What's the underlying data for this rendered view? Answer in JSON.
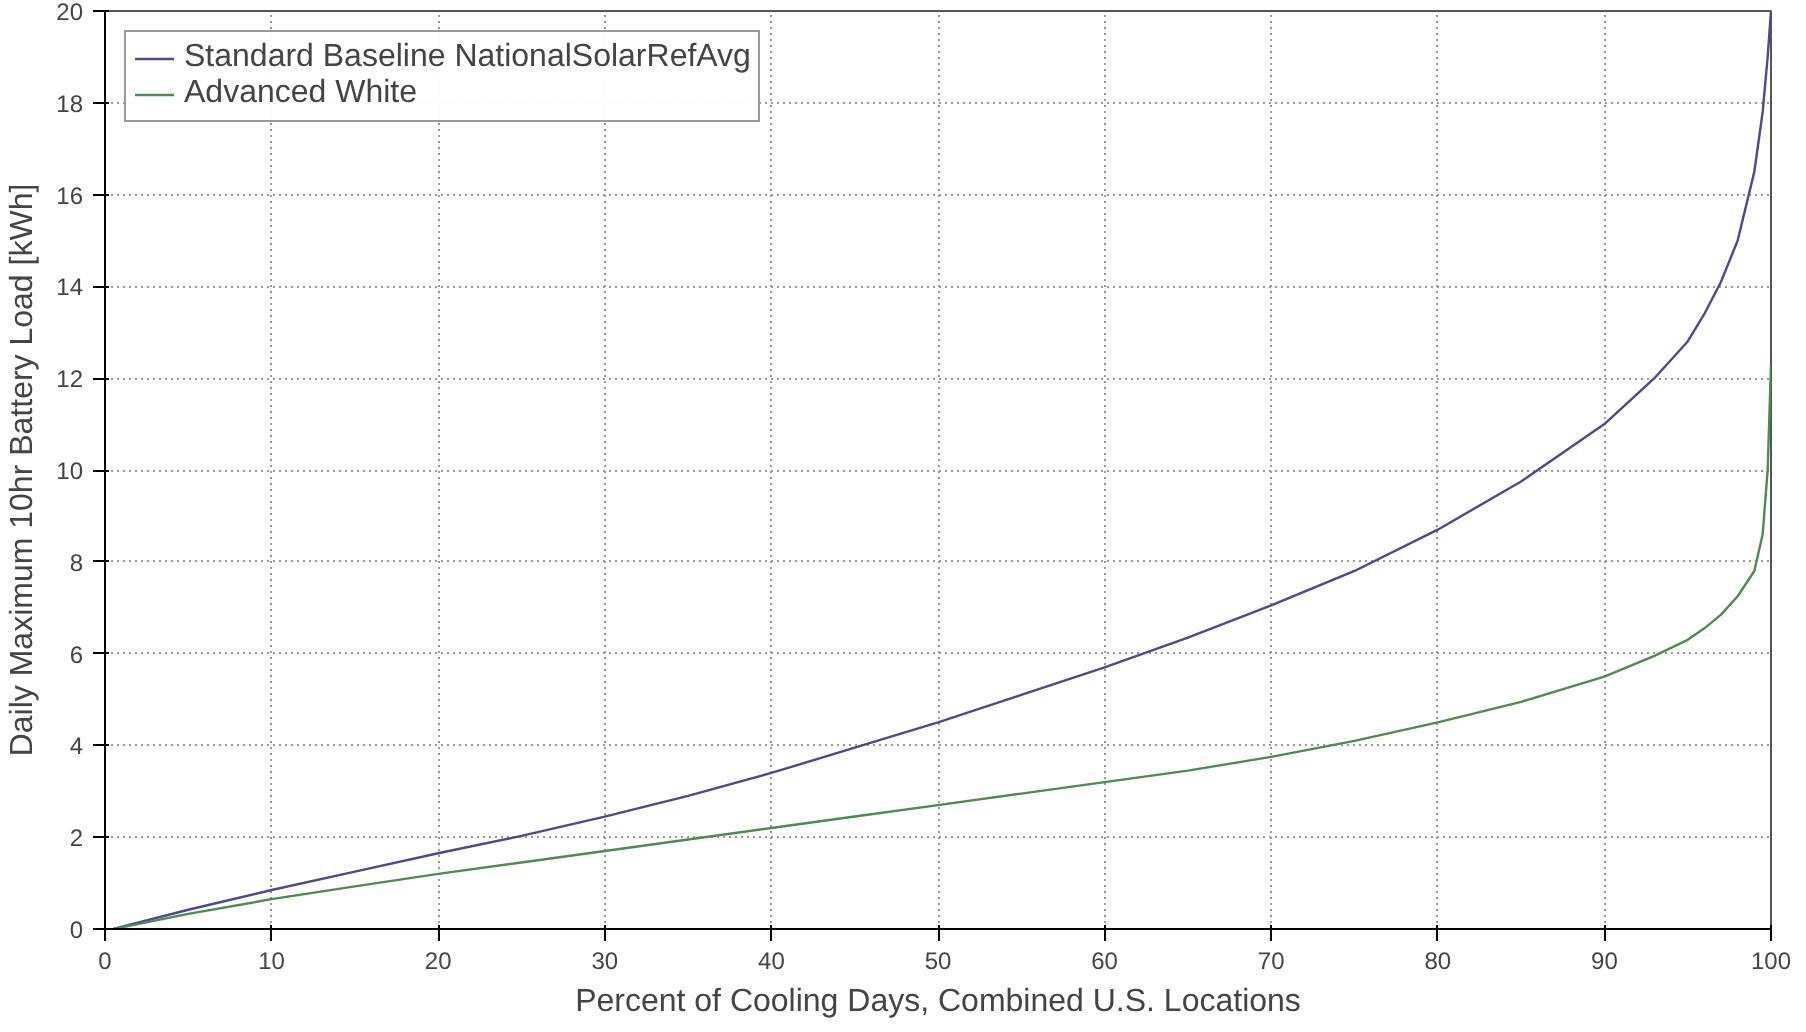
{
  "chart_data": {
    "type": "line",
    "xlabel": "Percent of Cooling Days, Combined U.S. Locations",
    "ylabel": "Daily Maximum 10hr Battery Load [kWh]",
    "xlim": [
      0,
      100
    ],
    "ylim": [
      0,
      20
    ],
    "xticks": [
      0,
      10,
      20,
      30,
      40,
      50,
      60,
      70,
      80,
      90,
      100
    ],
    "yticks": [
      0,
      2,
      4,
      6,
      8,
      10,
      12,
      14,
      16,
      18,
      20
    ],
    "grid": true,
    "legend": "top left",
    "series": [
      {
        "name": "Standard Baseline NationalSolarRefAvg",
        "color": "#4b4a8c",
        "x": [
          0.5,
          5,
          10,
          15,
          20,
          25,
          30,
          35,
          40,
          45,
          50,
          55,
          60,
          65,
          70,
          75,
          80,
          85,
          90,
          93,
          95,
          96,
          97,
          98,
          99,
          99.5,
          99.8,
          100
        ],
        "values": [
          0,
          0.42,
          0.85,
          1.25,
          1.65,
          2.03,
          2.45,
          2.9,
          3.4,
          3.95,
          4.5,
          5.1,
          5.7,
          6.35,
          7.05,
          7.8,
          8.7,
          9.75,
          11.0,
          12.0,
          12.8,
          13.4,
          14.1,
          15.0,
          16.5,
          17.8,
          19.0,
          20
        ]
      },
      {
        "name": "Advanced White",
        "color": "#4f8a4f",
        "x": [
          0.5,
          5,
          10,
          15,
          20,
          25,
          30,
          35,
          40,
          45,
          50,
          55,
          60,
          65,
          70,
          75,
          80,
          85,
          90,
          93,
          95,
          96,
          97,
          98,
          99,
          99.5,
          99.8,
          100
        ],
        "values": [
          0,
          0.33,
          0.65,
          0.93,
          1.2,
          1.45,
          1.7,
          1.95,
          2.2,
          2.45,
          2.7,
          2.95,
          3.2,
          3.45,
          3.75,
          4.1,
          4.5,
          4.95,
          5.5,
          5.95,
          6.3,
          6.55,
          6.85,
          7.25,
          7.8,
          8.6,
          10.0,
          12.3
        ]
      }
    ]
  }
}
